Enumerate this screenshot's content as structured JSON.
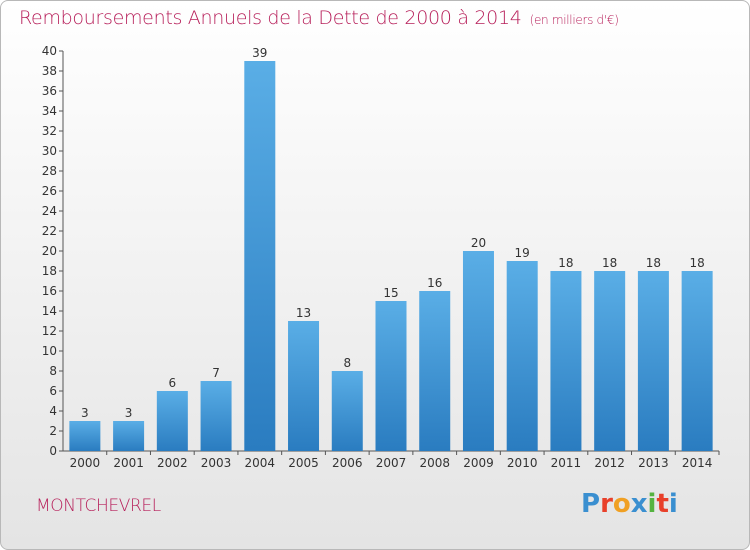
{
  "header": {
    "title": "Remboursements Annuels de la Dette de 2000 à 2014",
    "unit": "(en milliers d'€)"
  },
  "footer": {
    "town": "MONTCHEVREL",
    "logo_text": "Proxiti",
    "logo_colors": [
      "#3a8fd0",
      "#e8402a",
      "#f0a023",
      "#3a8fd0",
      "#55b340",
      "#e8402a",
      "#3a8fd0"
    ]
  },
  "colors": {
    "bar_light": "#5aaee6",
    "bar_dark": "#2a7cc0",
    "title": "#b71f5a"
  },
  "chart_data": {
    "type": "bar",
    "title": "Remboursements Annuels de la Dette de 2000 à 2014",
    "subtitle": "(en milliers d'€)",
    "xlabel": "",
    "ylabel": "",
    "ylim": [
      0,
      40
    ],
    "ytick_step": 2,
    "grid": false,
    "categories": [
      "2000",
      "2001",
      "2002",
      "2003",
      "2004",
      "2005",
      "2006",
      "2007",
      "2008",
      "2009",
      "2010",
      "2011",
      "2012",
      "2013",
      "2014"
    ],
    "values": [
      3,
      3,
      6,
      7,
      39,
      13,
      8,
      15,
      16,
      20,
      19,
      18,
      18,
      18,
      18
    ]
  }
}
